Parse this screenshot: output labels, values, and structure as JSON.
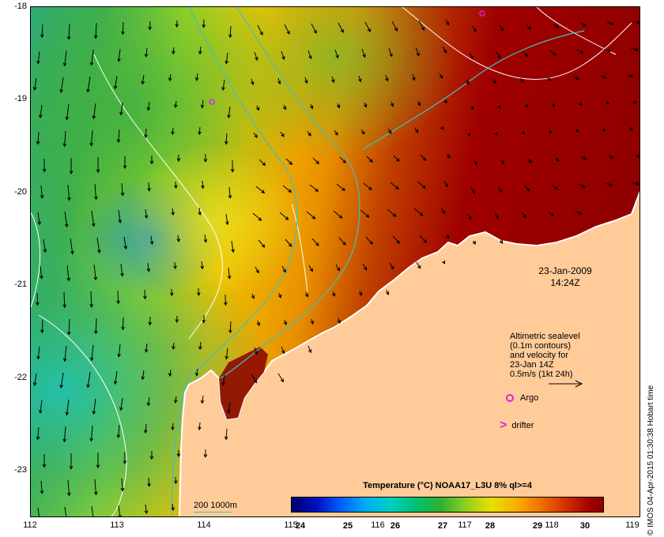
{
  "map": {
    "lat_labels": [
      "-18",
      "-19",
      "-20",
      "-21",
      "-22",
      "-23"
    ],
    "lon_labels": [
      "112",
      "113",
      "114",
      "115",
      "116",
      "117",
      "118",
      "119"
    ],
    "lat_range": [
      -23.5,
      -18
    ],
    "lon_range": [
      112,
      119
    ],
    "land_color": "#ffcc99",
    "timestamp": {
      "date": "23-Jan-2009",
      "time": "14:24Z"
    }
  },
  "legend": {
    "altimetry_lines": [
      "Altimetric sealevel",
      "(0.1m contours)",
      "and velocity for",
      "23-Jan 14Z",
      "0.5m/s (1kt 24h)"
    ],
    "argo_label": "Argo",
    "argo_color": "#e020e0",
    "drifter_label": "drifter",
    "contour_label": "200  1000m",
    "contour_color": "#40c0c0"
  },
  "colorbar": {
    "title": "Temperature (°C) NOAA17_L3U 8% ql>=4",
    "ticks": [
      "24",
      "25",
      "26",
      "27",
      "28",
      "29",
      "30"
    ],
    "range": [
      23.7,
      30.3
    ]
  },
  "credit": "© IMOS 04-Apr-2015 01:30:38 Hobart time"
}
